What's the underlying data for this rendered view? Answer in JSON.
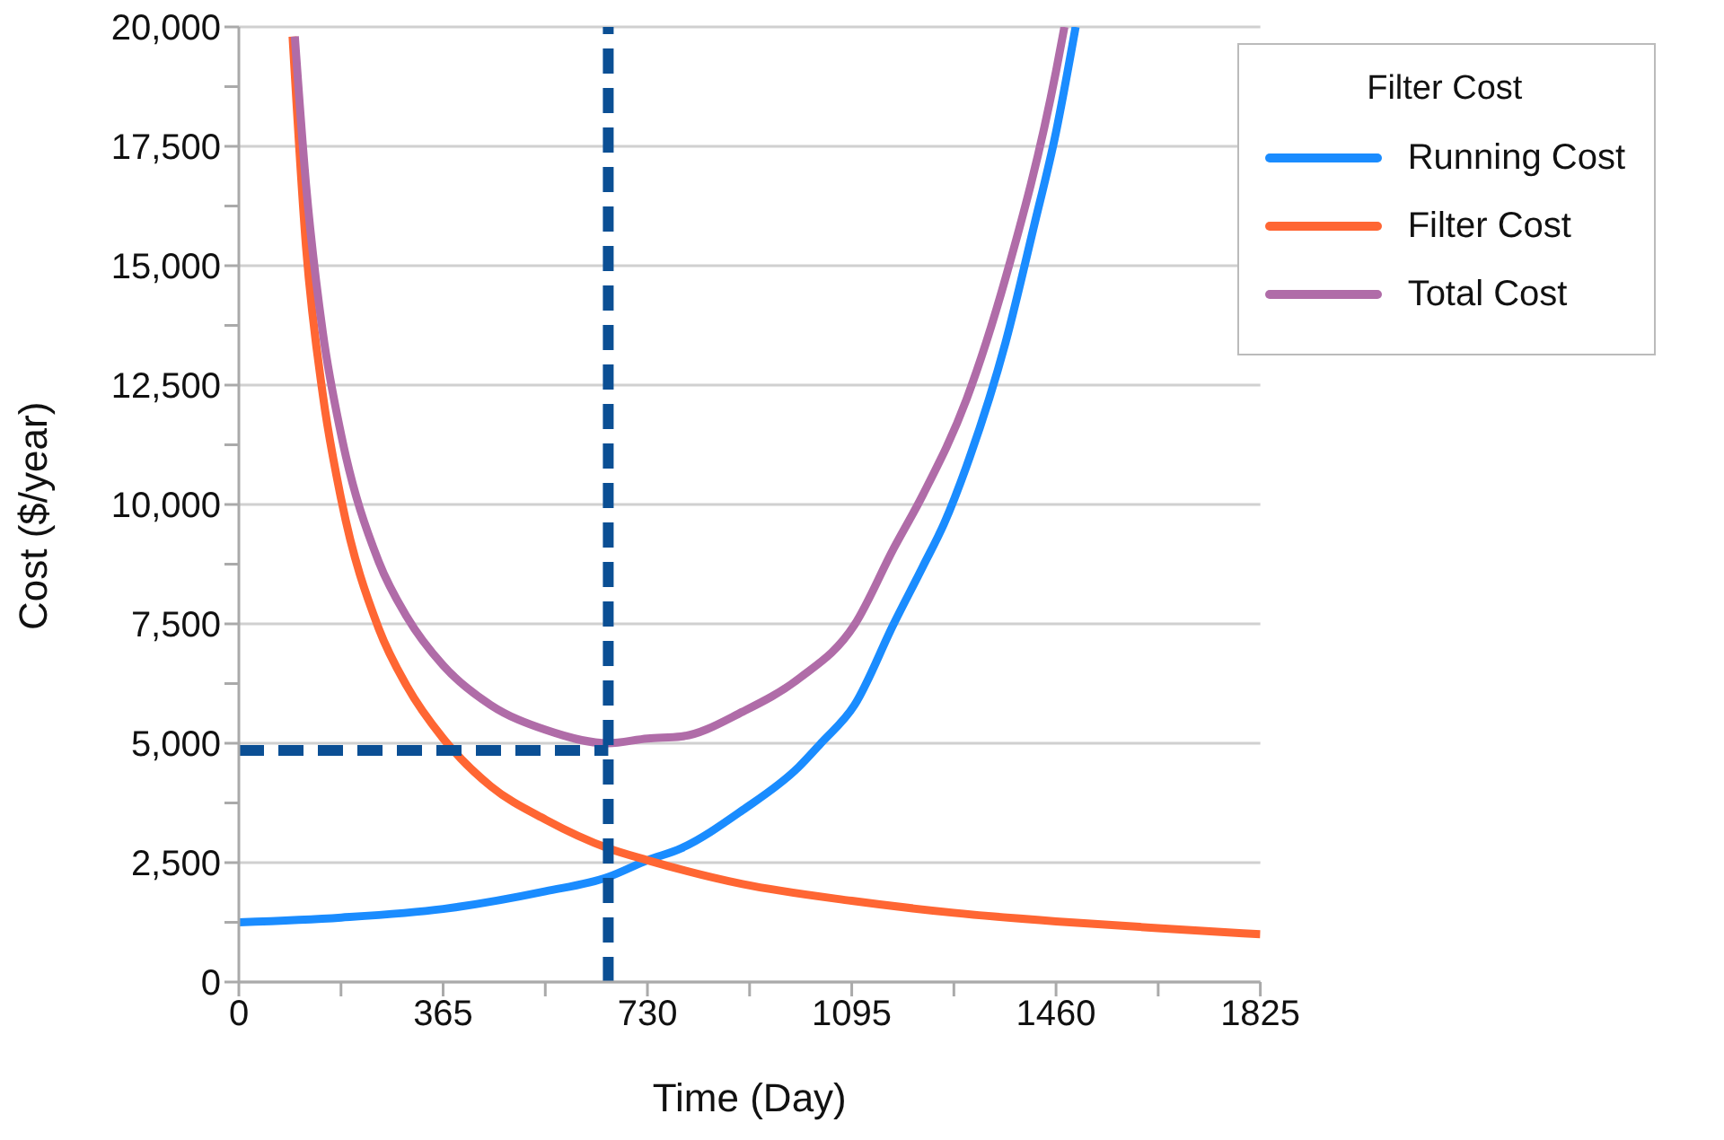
{
  "chart_data": {
    "type": "line",
    "xlabel": "Time (Day)",
    "ylabel": "Cost ($/year)",
    "legend_title": "Filter Cost",
    "xlim": [
      0,
      1825
    ],
    "xticks": [
      0,
      {
        "value": 182.5,
        "label": null
      },
      365,
      {
        "value": 547.5,
        "label": null
      },
      730,
      {
        "value": 912.5,
        "label": null
      },
      1095,
      {
        "value": 1277.5,
        "label": null
      },
      1460,
      {
        "value": 1642.5,
        "label": null
      },
      1825
    ],
    "ylim": [
      0,
      20000
    ],
    "yticks": [
      0,
      {
        "value": 1250,
        "label": null
      },
      {
        "value": 2500,
        "label": "2,500"
      },
      {
        "value": 3750,
        "label": null
      },
      {
        "value": 5000,
        "label": "5,000"
      },
      {
        "value": 6250,
        "label": null
      },
      {
        "value": 7500,
        "label": "7,500"
      },
      {
        "value": 8750,
        "label": null
      },
      {
        "value": 10000,
        "label": "10,000"
      },
      {
        "value": 11250,
        "label": null
      },
      {
        "value": 12500,
        "label": "12,500"
      },
      {
        "value": 13750,
        "label": null
      },
      {
        "value": 15000,
        "label": "15,000"
      },
      {
        "value": 16250,
        "label": null
      },
      {
        "value": 17500,
        "label": "17,500"
      },
      {
        "value": 18750,
        "label": null
      },
      {
        "value": 20000,
        "label": "20,000"
      }
    ],
    "grid": "y",
    "legend": "top right",
    "marker": "none",
    "line_style": "solid",
    "series": [
      {
        "name": "Running Cost",
        "color": "#1a8cff",
        "x": [
          0,
          183,
          365,
          548,
          660,
          730,
          790,
          900,
          1000,
          1040,
          1100,
          1170,
          1222,
          1260,
          1300,
          1370,
          1420,
          1460,
          1495
        ],
        "values": [
          1250,
          1350,
          1530,
          1900,
          2200,
          2550,
          2800,
          3600,
          4500,
          5000,
          5800,
          7500,
          8700,
          9600,
          10800,
          13400,
          15800,
          17800,
          20000
        ]
      },
      {
        "name": "Filter Cost",
        "color": "#ff6633",
        "x": [
          96,
          120,
          150,
          183,
          250,
          300,
          365,
          450,
          548,
          660,
          730,
          900,
          1095,
          1277,
          1460,
          1642,
          1825
        ],
        "values": [
          19800,
          15400,
          12300,
          10100,
          7400,
          6200,
          5100,
          4100,
          3400,
          2800,
          2550,
          2050,
          1700,
          1450,
          1270,
          1130,
          1000
        ]
      },
      {
        "name": "Total Cost",
        "color": "#b06ca8",
        "x": [
          100,
          120,
          150,
          183,
          250,
          300,
          365,
          450,
          548,
          660,
          730,
          790,
          900,
          1000,
          1100,
          1170,
          1222,
          1300,
          1370,
          1460,
          1475
        ],
        "values": [
          19800,
          16700,
          13600,
          11450,
          8800,
          7650,
          6630,
          5800,
          5280,
          5000,
          5100,
          5140,
          5660,
          6350,
          7480,
          9080,
          10200,
          12200,
          14750,
          19070,
          20000
        ]
      }
    ],
    "ref_lines": [
      {
        "axis": "x",
        "value": 660,
        "color": "#0b4f94",
        "line_style": "dashed"
      },
      {
        "axis": "y",
        "value": 4850,
        "color": "#0b4f94",
        "line_style": "dashed"
      }
    ]
  }
}
